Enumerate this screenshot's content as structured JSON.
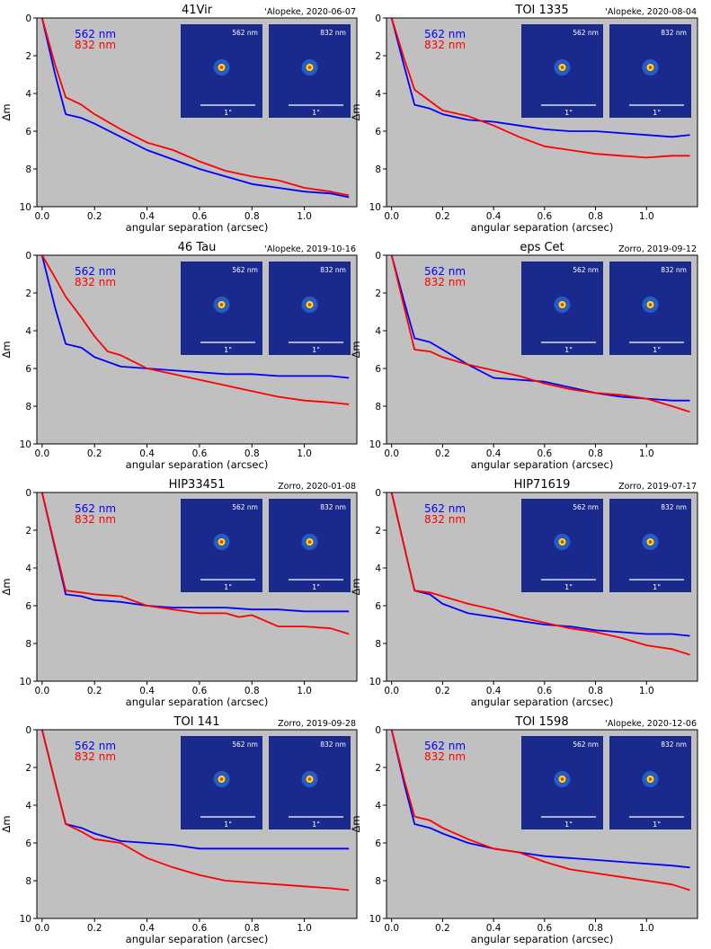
{
  "figure": {
    "legend_labels": [
      "562 nm",
      "832 nm"
    ],
    "series_colors": {
      "562 nm": "#0000ff",
      "832 nm": "#ff0000"
    },
    "plot_background": "#c0c0c0",
    "inset_scale_label": "1\"",
    "inset_panel_labels": [
      "562 nm",
      "832 nm"
    ],
    "inset_background": "#1a2a8c"
  },
  "chart_data": [
    {
      "type": "line",
      "title": "41Vir",
      "instrument_label": "'Alopeke, 2020-06-07",
      "xlabel": "angular separation (arcsec)",
      "ylabel": "Δm",
      "xlim": [
        -0.02,
        1.2
      ],
      "ylim": [
        10,
        0
      ],
      "xticks": [
        "0.0",
        "0.2",
        "0.4",
        "0.6",
        "0.8",
        "1.0"
      ],
      "yticks": [
        "0",
        "2",
        "4",
        "6",
        "8",
        "10"
      ],
      "grid": false,
      "legend_position": "top-left",
      "series": [
        {
          "name": "562 nm",
          "x": [
            0,
            0.05,
            0.09,
            0.15,
            0.2,
            0.3,
            0.4,
            0.5,
            0.6,
            0.7,
            0.8,
            0.9,
            1.0,
            1.1,
            1.17
          ],
          "values": [
            0,
            3.0,
            5.1,
            5.3,
            5.6,
            6.3,
            7.0,
            7.5,
            8.0,
            8.4,
            8.8,
            9.0,
            9.2,
            9.3,
            9.5
          ]
        },
        {
          "name": "832 nm",
          "x": [
            0,
            0.05,
            0.09,
            0.15,
            0.2,
            0.3,
            0.4,
            0.5,
            0.6,
            0.7,
            0.8,
            0.9,
            1.0,
            1.1,
            1.17
          ],
          "values": [
            0,
            2.5,
            4.2,
            4.6,
            5.1,
            5.9,
            6.6,
            7.0,
            7.6,
            8.1,
            8.4,
            8.6,
            9.0,
            9.2,
            9.4
          ]
        }
      ]
    },
    {
      "type": "line",
      "title": "TOI 1335",
      "instrument_label": "'Alopeke, 2020-08-04",
      "xlabel": "angular separation (arcsec)",
      "ylabel": "Δm",
      "xlim": [
        -0.02,
        1.2
      ],
      "ylim": [
        10,
        0
      ],
      "xticks": [
        "0.0",
        "0.2",
        "0.4",
        "0.6",
        "0.8",
        "1.0"
      ],
      "yticks": [
        "0",
        "2",
        "4",
        "6",
        "8",
        "10"
      ],
      "grid": false,
      "legend_position": "top-left",
      "series": [
        {
          "name": "562 nm",
          "x": [
            0,
            0.05,
            0.09,
            0.15,
            0.2,
            0.3,
            0.4,
            0.5,
            0.6,
            0.7,
            0.8,
            0.9,
            1.0,
            1.1,
            1.17
          ],
          "values": [
            0,
            2.6,
            4.6,
            4.8,
            5.1,
            5.4,
            5.5,
            5.7,
            5.9,
            6.0,
            6.0,
            6.1,
            6.2,
            6.3,
            6.2
          ]
        },
        {
          "name": "832 nm",
          "x": [
            0,
            0.05,
            0.09,
            0.15,
            0.2,
            0.3,
            0.4,
            0.5,
            0.6,
            0.7,
            0.8,
            0.9,
            1.0,
            1.1,
            1.17
          ],
          "values": [
            0,
            2.2,
            3.8,
            4.4,
            4.9,
            5.2,
            5.7,
            6.3,
            6.8,
            7.0,
            7.2,
            7.3,
            7.4,
            7.3,
            7.3
          ]
        }
      ]
    },
    {
      "type": "line",
      "title": "46 Tau",
      "instrument_label": "'Alopeke, 2019-10-16",
      "xlabel": "angular separation (arcsec)",
      "ylabel": "Δm",
      "xlim": [
        -0.02,
        1.2
      ],
      "ylim": [
        10,
        0
      ],
      "xticks": [
        "0.0",
        "0.2",
        "0.4",
        "0.6",
        "0.8",
        "1.0"
      ],
      "yticks": [
        "0",
        "2",
        "4",
        "6",
        "8",
        "10"
      ],
      "grid": false,
      "legend_position": "top-left",
      "series": [
        {
          "name": "562 nm",
          "x": [
            0,
            0.05,
            0.09,
            0.15,
            0.2,
            0.3,
            0.4,
            0.5,
            0.6,
            0.7,
            0.8,
            0.9,
            1.0,
            1.1,
            1.17
          ],
          "values": [
            0,
            2.8,
            4.7,
            4.9,
            5.4,
            5.9,
            6.0,
            6.1,
            6.2,
            6.3,
            6.3,
            6.4,
            6.4,
            6.4,
            6.5
          ]
        },
        {
          "name": "832 nm",
          "x": [
            0,
            0.05,
            0.09,
            0.15,
            0.2,
            0.25,
            0.3,
            0.4,
            0.5,
            0.6,
            0.7,
            0.8,
            0.9,
            1.0,
            1.1,
            1.17
          ],
          "values": [
            0,
            1.2,
            2.2,
            3.3,
            4.3,
            5.1,
            5.3,
            6.0,
            6.3,
            6.6,
            6.9,
            7.2,
            7.5,
            7.7,
            7.8,
            7.9
          ]
        }
      ]
    },
    {
      "type": "line",
      "title": "eps Cet",
      "instrument_label": "Zorro, 2019-09-12",
      "xlabel": "angular separation (arcsec)",
      "ylabel": "Δm",
      "xlim": [
        -0.02,
        1.2
      ],
      "ylim": [
        10,
        0
      ],
      "xticks": [
        "0.0",
        "0.2",
        "0.4",
        "0.6",
        "0.8",
        "1.0"
      ],
      "yticks": [
        "0",
        "2",
        "4",
        "6",
        "8",
        "10"
      ],
      "grid": false,
      "legend_position": "top-left",
      "series": [
        {
          "name": "562 nm",
          "x": [
            0,
            0.05,
            0.09,
            0.15,
            0.2,
            0.3,
            0.4,
            0.5,
            0.6,
            0.7,
            0.8,
            0.9,
            1.0,
            1.1,
            1.17
          ],
          "values": [
            0,
            2.5,
            4.4,
            4.6,
            5.0,
            5.8,
            6.5,
            6.6,
            6.7,
            7.0,
            7.3,
            7.5,
            7.6,
            7.7,
            7.7
          ]
        },
        {
          "name": "832 nm",
          "x": [
            0,
            0.05,
            0.09,
            0.15,
            0.2,
            0.3,
            0.4,
            0.5,
            0.6,
            0.7,
            0.8,
            0.9,
            1.0,
            1.1,
            1.17
          ],
          "values": [
            0,
            2.8,
            5.0,
            5.1,
            5.4,
            5.8,
            6.1,
            6.4,
            6.8,
            7.1,
            7.3,
            7.4,
            7.6,
            8.0,
            8.3
          ]
        }
      ]
    },
    {
      "type": "line",
      "title": "HIP33451",
      "instrument_label": "Zorro, 2020-01-08",
      "xlabel": "angular separation (arcsec)",
      "ylabel": "Δm",
      "xlim": [
        -0.02,
        1.2
      ],
      "ylim": [
        10,
        0
      ],
      "xticks": [
        "0.0",
        "0.2",
        "0.4",
        "0.6",
        "0.8",
        "1.0"
      ],
      "yticks": [
        "0",
        "2",
        "4",
        "6",
        "8",
        "10"
      ],
      "grid": false,
      "legend_position": "top-left",
      "series": [
        {
          "name": "562 nm",
          "x": [
            0,
            0.05,
            0.09,
            0.15,
            0.2,
            0.3,
            0.4,
            0.5,
            0.6,
            0.7,
            0.8,
            0.9,
            1.0,
            1.1,
            1.17
          ],
          "values": [
            0,
            3.0,
            5.4,
            5.5,
            5.7,
            5.8,
            6.0,
            6.1,
            6.1,
            6.1,
            6.2,
            6.2,
            6.3,
            6.3,
            6.3
          ]
        },
        {
          "name": "832 nm",
          "x": [
            0,
            0.05,
            0.09,
            0.15,
            0.2,
            0.3,
            0.4,
            0.5,
            0.6,
            0.7,
            0.75,
            0.8,
            0.9,
            1.0,
            1.1,
            1.17
          ],
          "values": [
            0,
            2.9,
            5.2,
            5.3,
            5.4,
            5.5,
            6.0,
            6.2,
            6.4,
            6.4,
            6.6,
            6.5,
            7.1,
            7.1,
            7.2,
            7.5
          ]
        }
      ]
    },
    {
      "type": "line",
      "title": "HIP71619",
      "instrument_label": "Zorro, 2019-07-17",
      "xlabel": "angular separation (arcsec)",
      "ylabel": "Δm",
      "xlim": [
        -0.02,
        1.2
      ],
      "ylim": [
        10,
        0
      ],
      "xticks": [
        "0.0",
        "0.2",
        "0.4",
        "0.6",
        "0.8",
        "1.0"
      ],
      "yticks": [
        "0",
        "2",
        "4",
        "6",
        "8",
        "10"
      ],
      "grid": false,
      "legend_position": "top-left",
      "series": [
        {
          "name": "562 nm",
          "x": [
            0,
            0.05,
            0.09,
            0.15,
            0.2,
            0.3,
            0.4,
            0.5,
            0.6,
            0.7,
            0.8,
            0.9,
            1.0,
            1.1,
            1.17
          ],
          "values": [
            0,
            2.9,
            5.2,
            5.4,
            5.9,
            6.4,
            6.6,
            6.8,
            7.0,
            7.1,
            7.3,
            7.4,
            7.5,
            7.5,
            7.6
          ]
        },
        {
          "name": "832 nm",
          "x": [
            0,
            0.05,
            0.09,
            0.15,
            0.2,
            0.3,
            0.4,
            0.5,
            0.6,
            0.7,
            0.8,
            0.9,
            1.0,
            1.1,
            1.17
          ],
          "values": [
            0,
            2.9,
            5.2,
            5.3,
            5.5,
            5.9,
            6.2,
            6.6,
            6.9,
            7.2,
            7.4,
            7.7,
            8.1,
            8.3,
            8.6
          ]
        }
      ]
    },
    {
      "type": "line",
      "title": "TOI 141",
      "instrument_label": "Zorro, 2019-09-28",
      "xlabel": "angular separation (arcsec)",
      "ylabel": "Δm",
      "xlim": [
        -0.02,
        1.2
      ],
      "ylim": [
        10,
        0
      ],
      "xticks": [
        "0.0",
        "0.2",
        "0.4",
        "0.6",
        "0.8",
        "1.0"
      ],
      "yticks": [
        "0",
        "2",
        "4",
        "6",
        "8",
        "10"
      ],
      "grid": false,
      "legend_position": "top-left",
      "series": [
        {
          "name": "562 nm",
          "x": [
            0,
            0.05,
            0.09,
            0.15,
            0.2,
            0.3,
            0.4,
            0.5,
            0.6,
            0.7,
            0.8,
            0.9,
            1.0,
            1.1,
            1.17
          ],
          "values": [
            0,
            2.8,
            5.0,
            5.2,
            5.5,
            5.9,
            6.0,
            6.1,
            6.3,
            6.3,
            6.3,
            6.3,
            6.3,
            6.3,
            6.3
          ]
        },
        {
          "name": "832 nm",
          "x": [
            0,
            0.05,
            0.09,
            0.15,
            0.2,
            0.3,
            0.4,
            0.5,
            0.6,
            0.7,
            0.8,
            0.9,
            1.0,
            1.1,
            1.17
          ],
          "values": [
            0,
            2.8,
            5.0,
            5.4,
            5.8,
            6.0,
            6.8,
            7.3,
            7.7,
            8.0,
            8.1,
            8.2,
            8.3,
            8.4,
            8.5
          ]
        }
      ]
    },
    {
      "type": "line",
      "title": "TOI 1598",
      "instrument_label": "'Alopeke, 2020-12-06",
      "xlabel": "angular separation (arcsec)",
      "ylabel": "Δm",
      "xlim": [
        -0.02,
        1.2
      ],
      "ylim": [
        10,
        0
      ],
      "xticks": [
        "0.0",
        "0.2",
        "0.4",
        "0.6",
        "0.8",
        "1.0"
      ],
      "yticks": [
        "0",
        "2",
        "4",
        "6",
        "8",
        "10"
      ],
      "grid": false,
      "legend_position": "top-left",
      "series": [
        {
          "name": "562 nm",
          "x": [
            0,
            0.05,
            0.09,
            0.15,
            0.2,
            0.3,
            0.4,
            0.5,
            0.6,
            0.7,
            0.8,
            0.9,
            1.0,
            1.1,
            1.17
          ],
          "values": [
            0,
            2.9,
            5.0,
            5.2,
            5.5,
            6.0,
            6.3,
            6.5,
            6.7,
            6.8,
            6.9,
            7.0,
            7.1,
            7.2,
            7.3
          ]
        },
        {
          "name": "832 nm",
          "x": [
            0,
            0.05,
            0.09,
            0.15,
            0.2,
            0.3,
            0.4,
            0.5,
            0.6,
            0.7,
            0.8,
            0.9,
            1.0,
            1.1,
            1.17
          ],
          "values": [
            0,
            2.7,
            4.6,
            4.8,
            5.2,
            5.8,
            6.3,
            6.5,
            7.0,
            7.4,
            7.6,
            7.8,
            8.0,
            8.2,
            8.5
          ]
        }
      ]
    }
  ]
}
